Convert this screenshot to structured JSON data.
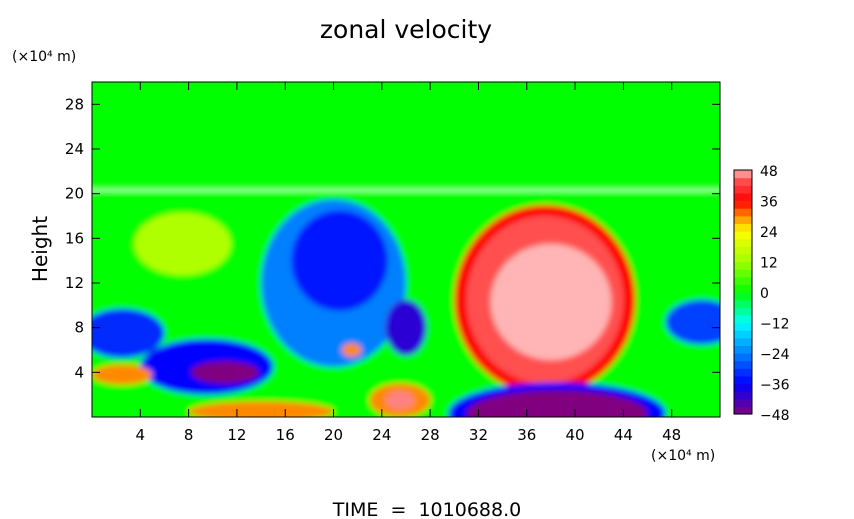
{
  "chart_data": {
    "type": "heatmap",
    "title": "zonal velocity",
    "ylabel": "Height",
    "x_unit_label": "(×10⁴ m)",
    "y_unit_label": "(×10⁴ m)",
    "xlim": [
      0,
      52
    ],
    "ylim": [
      0,
      30
    ],
    "x_ticks": [
      4,
      8,
      12,
      16,
      20,
      24,
      28,
      32,
      36,
      40,
      44,
      48
    ],
    "y_ticks": [
      4,
      8,
      12,
      16,
      20,
      24,
      28
    ],
    "colorbar": {
      "min": -48,
      "max": 48,
      "tick_labels": [
        "48",
        "36",
        "24",
        "12",
        "0",
        "−12",
        "−24",
        "−36",
        "−48"
      ],
      "colors": [
        "#ffb3b3",
        "#ff0000",
        "#ff9900",
        "#ffff00",
        "#00ff00",
        "#00ffff",
        "#0000ff",
        "#800080"
      ]
    },
    "background_value": 0,
    "features": [
      {
        "shape": "band",
        "y": [
          0,
          20.2
        ],
        "value": 0
      },
      {
        "shape": "ellipse",
        "cx": 37.5,
        "cy": 10.5,
        "rx": 7.5,
        "ry": 8.5,
        "value": 36
      },
      {
        "shape": "ellipse",
        "cx": 37.5,
        "cy": 10.5,
        "rx": 6.5,
        "ry": 7.5,
        "value": 44
      },
      {
        "shape": "ellipse",
        "cx": 38.0,
        "cy": 10.3,
        "rx": 5.0,
        "ry": 5.2,
        "value": 52
      },
      {
        "shape": "ellipse",
        "cx": 38.5,
        "cy": 0.3,
        "rx": 9.0,
        "ry": 2.8,
        "value": -36
      },
      {
        "shape": "ellipse",
        "cx": 38.5,
        "cy": 0.3,
        "rx": 7.5,
        "ry": 2.1,
        "value": -48
      },
      {
        "shape": "ellipse",
        "cx": 20.0,
        "cy": 12.0,
        "rx": 6.0,
        "ry": 7.5,
        "value": -24
      },
      {
        "shape": "ellipse",
        "cx": 20.5,
        "cy": 14.0,
        "rx": 4.0,
        "ry": 4.5,
        "value": -34
      },
      {
        "shape": "ellipse",
        "cx": 26.0,
        "cy": 8.0,
        "rx": 1.7,
        "ry": 2.5,
        "value": -40
      },
      {
        "shape": "ellipse",
        "cx": 9.5,
        "cy": 4.5,
        "rx": 5.5,
        "ry": 2.5,
        "value": -36
      },
      {
        "shape": "ellipse",
        "cx": 11.0,
        "cy": 4.0,
        "rx": 2.8,
        "ry": 1.0,
        "value": -48
      },
      {
        "shape": "ellipse",
        "cx": 2.5,
        "cy": 7.5,
        "rx": 3.5,
        "ry": 2.2,
        "value": -32
      },
      {
        "shape": "ellipse",
        "cx": 50.5,
        "cy": 8.5,
        "rx": 3.0,
        "ry": 2.0,
        "value": -30
      },
      {
        "shape": "ellipse",
        "cx": 7.5,
        "cy": 15.5,
        "rx": 4.0,
        "ry": 2.8,
        "value": 14
      },
      {
        "shape": "ellipse",
        "cx": 2.5,
        "cy": 3.8,
        "rx": 2.5,
        "ry": 0.9,
        "value": 30
      },
      {
        "shape": "ellipse",
        "cx": 25.5,
        "cy": 1.5,
        "rx": 2.5,
        "ry": 1.5,
        "value": 30
      },
      {
        "shape": "ellipse",
        "cx": 25.5,
        "cy": 1.5,
        "rx": 1.2,
        "ry": 0.8,
        "value": 46
      },
      {
        "shape": "ellipse",
        "cx": 14.0,
        "cy": 0.5,
        "rx": 6.0,
        "ry": 0.9,
        "value": 30
      },
      {
        "shape": "ellipse",
        "cx": 21.5,
        "cy": 6.0,
        "rx": 0.8,
        "ry": 0.6,
        "value": 30
      }
    ],
    "grid": false,
    "legend": "colorbar-right"
  },
  "footer": {
    "time_label": "TIME  =  1010688.0"
  }
}
